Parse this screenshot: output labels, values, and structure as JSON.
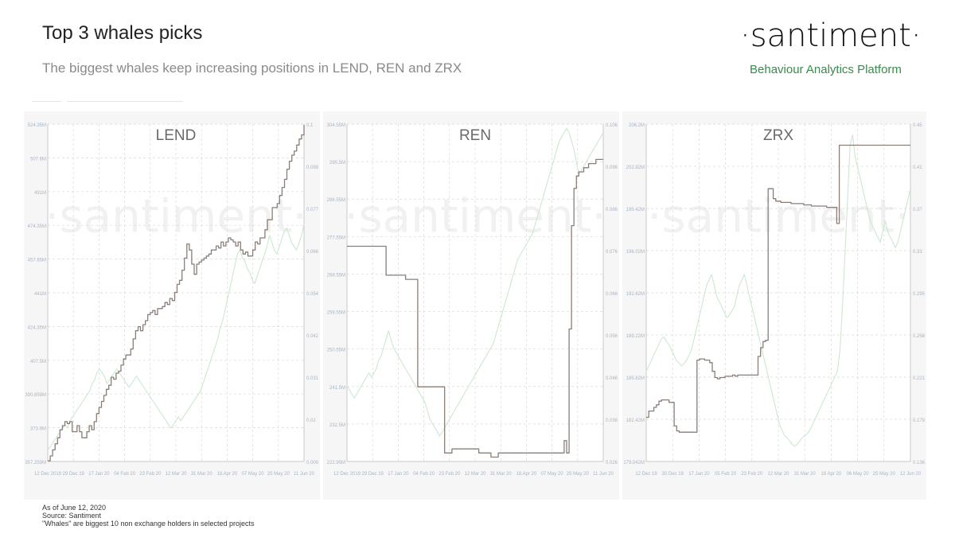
{
  "header": {
    "title": "Top 3 whales picks",
    "subtitle": "The biggest whales keep increasing positions in LEND, REN and ZRX",
    "logo": "·santiment·",
    "tagline": "Behaviour Analytics Platform"
  },
  "footer": {
    "line1": "As of June 12, 2020",
    "line2": "Source: Santiment",
    "line3": "\"Whales\" are biggest 10 non exchange holders in selected projects"
  },
  "watermark": "·santiment·",
  "colors": {
    "holdings": "#8a7e78",
    "price": "#cde8cf",
    "grid": "#d9d9d9",
    "axis_text": "#a8b4c4"
  },
  "chart_data": [
    {
      "type": "line",
      "title": "LEND",
      "x_ticks": [
        "12 Dec 2019",
        "29 Dec 19",
        "17 Jan 20",
        "04 Feb 20",
        "23 Feb 20",
        "12 Mar 20",
        "31 Mar 20",
        "18 Apr 20",
        "07 May 20",
        "25 May 20",
        "11 Jun 20"
      ],
      "left_ticks": [
        "357.259M",
        "373.9M",
        "390.859M",
        "407.5M",
        "424.35M",
        "441M",
        "457.65M",
        "474.35M",
        "491M",
        "507.6M",
        "524.35M"
      ],
      "right_ticks": [
        "0.009",
        "0.02",
        "0.031",
        "0.042",
        "0.054",
        "0.066",
        "0.077",
        "0.088",
        "0.1"
      ],
      "ylim_left": [
        357.259,
        524.35
      ],
      "ylim_right": [
        0.009,
        0.1
      ],
      "series": [
        {
          "values": [
            357.6,
            360,
            363,
            366,
            369,
            373,
            375,
            377,
            376,
            377,
            372,
            372,
            375,
            372,
            369,
            369,
            372,
            375,
            373,
            377,
            381,
            384,
            387,
            390,
            393,
            395,
            399,
            398,
            401,
            402,
            405,
            408,
            410,
            410,
            413,
            418,
            422,
            424,
            422,
            425,
            427,
            430,
            431,
            432,
            430,
            433,
            433,
            434,
            436,
            435,
            438,
            437,
            441,
            445,
            447,
            452,
            458,
            465,
            462,
            455,
            450,
            455,
            456,
            457,
            458,
            459,
            460,
            462,
            462,
            464,
            463,
            466,
            464,
            466,
            468,
            467,
            466,
            464,
            466,
            462,
            460,
            461,
            459,
            459,
            462,
            466,
            465,
            468,
            468,
            472,
            477,
            477,
            483,
            483,
            485,
            489,
            493,
            497,
            502,
            506,
            509,
            511,
            514,
            517,
            519,
            524
          ]
        },
        {
          "values": [
            0.012,
            0.013,
            0.014,
            0.015,
            0.016,
            0.017,
            0.018,
            0.019,
            0.018,
            0.02,
            0.021,
            0.022,
            0.023,
            0.024,
            0.025,
            0.026,
            0.027,
            0.028,
            0.03,
            0.031,
            0.033,
            0.034,
            0.033,
            0.032,
            0.03,
            0.031,
            0.032,
            0.033,
            0.034,
            0.033,
            0.032,
            0.031,
            0.03,
            0.029,
            0.03,
            0.031,
            0.032,
            0.031,
            0.03,
            0.029,
            0.028,
            0.027,
            0.026,
            0.025,
            0.024,
            0.023,
            0.022,
            0.021,
            0.02,
            0.019,
            0.018,
            0.019,
            0.02,
            0.021,
            0.02,
            0.021,
            0.022,
            0.023,
            0.024,
            0.025,
            0.026,
            0.027,
            0.028,
            0.03,
            0.032,
            0.034,
            0.036,
            0.038,
            0.04,
            0.042,
            0.045,
            0.047,
            0.05,
            0.053,
            0.056,
            0.059,
            0.062,
            0.065,
            0.066,
            0.064,
            0.063,
            0.061,
            0.06,
            0.058,
            0.057,
            0.059,
            0.061,
            0.063,
            0.065,
            0.067,
            0.07,
            0.068,
            0.066,
            0.065,
            0.067,
            0.069,
            0.071,
            0.072,
            0.07,
            0.068,
            0.067,
            0.066,
            0.068,
            0.07,
            0.073
          ]
        }
      ]
    },
    {
      "type": "line",
      "title": "REN",
      "x_ticks": [
        "12 Dec 2019",
        "29 Dec 19",
        "17 Jan 20",
        "04 Feb 20",
        "23 Feb 20",
        "12 Mar 20",
        "31 Mar 20",
        "18 Apr 20",
        "07 May 20",
        "25 May 20",
        "11 Jun 20"
      ],
      "left_ticks": [
        "222.95M",
        "232.5M",
        "241.5M",
        "250.55M",
        "259.55M",
        "268.55M",
        "277.55M",
        "286.55M",
        "295.5M",
        "304.55M"
      ],
      "right_ticks": [
        "0.026",
        "0.036",
        "0.046",
        "0.056",
        "0.066",
        "0.076",
        "0.086",
        "0.096",
        "0.106"
      ],
      "ylim_left": [
        222.95,
        304.55
      ],
      "ylim_right": [
        0.026,
        0.106
      ],
      "series": [
        {
          "values": [
            275,
            275,
            275,
            275,
            275,
            275,
            275,
            275,
            275,
            275,
            275,
            275,
            275,
            275,
            275,
            275,
            268,
            268,
            268,
            268,
            268,
            268,
            268,
            268,
            267,
            267,
            267,
            267,
            267,
            241,
            241,
            241,
            241,
            241,
            241,
            241,
            241,
            241,
            241,
            241,
            225,
            225,
            225,
            226,
            226,
            226,
            226,
            226,
            226,
            226,
            226,
            226,
            226,
            226,
            225,
            225,
            225,
            225,
            225,
            224,
            224,
            224,
            225,
            225,
            225,
            225,
            225,
            225,
            225,
            225,
            225,
            225,
            225,
            225,
            225,
            225,
            225,
            225,
            225,
            225,
            225,
            225,
            225,
            225,
            225,
            225,
            225,
            225,
            225,
            228,
            225,
            255,
            280,
            289,
            292,
            293,
            293,
            294,
            294,
            295,
            295,
            295,
            296,
            296,
            296,
            296
          ]
        },
        {
          "values": [
            0.044,
            0.043,
            0.042,
            0.041,
            0.042,
            0.043,
            0.044,
            0.045,
            0.046,
            0.047,
            0.046,
            0.047,
            0.048,
            0.05,
            0.051,
            0.053,
            0.055,
            0.057,
            0.055,
            0.053,
            0.052,
            0.051,
            0.05,
            0.049,
            0.048,
            0.047,
            0.046,
            0.045,
            0.044,
            0.043,
            0.042,
            0.041,
            0.04,
            0.038,
            0.036,
            0.035,
            0.034,
            0.033,
            0.032,
            0.033,
            0.034,
            0.035,
            0.036,
            0.037,
            0.038,
            0.039,
            0.04,
            0.041,
            0.042,
            0.043,
            0.044,
            0.045,
            0.046,
            0.047,
            0.048,
            0.049,
            0.05,
            0.051,
            0.052,
            0.053,
            0.054,
            0.056,
            0.058,
            0.06,
            0.062,
            0.064,
            0.066,
            0.068,
            0.07,
            0.072,
            0.074,
            0.075,
            0.076,
            0.077,
            0.078,
            0.079,
            0.08,
            0.082,
            0.084,
            0.086,
            0.088,
            0.09,
            0.092,
            0.094,
            0.096,
            0.098,
            0.1,
            0.102,
            0.103,
            0.104,
            0.105,
            0.104,
            0.102,
            0.1,
            0.097,
            0.094,
            0.095,
            0.096,
            0.097,
            0.098,
            0.099,
            0.1,
            0.101,
            0.102,
            0.103,
            0.104
          ]
        }
      ]
    },
    {
      "type": "line",
      "title": "ZRX",
      "x_ticks": [
        "12 Dec 19",
        "30 Dec 19",
        "17 Jan 20",
        "05 Feb 20",
        "23 Feb 20",
        "12 Mar 20",
        "31 Mar 20",
        "18 Apr 20",
        "06 May 20",
        "25 May 20",
        "12 Jun 20"
      ],
      "left_ticks": [
        "179.042M",
        "182.42M",
        "185.82M",
        "189.22M",
        "192.62M",
        "196.02M",
        "199.42M",
        "202.82M",
        "206.2M"
      ],
      "right_ticks": [
        "0.136",
        "0.179",
        "0.221",
        "0.258",
        "0.295",
        "0.33",
        "0.37",
        "0.41",
        "0.45"
      ],
      "ylim_left": [
        179.042,
        206.2
      ],
      "ylim_right": [
        0.136,
        0.45
      ],
      "series": [
        {
          "values": [
            182.6,
            183.1,
            183.1,
            183.4,
            183.6,
            183.9,
            184.0,
            184.0,
            184.0,
            183.8,
            183.8,
            181.9,
            181.5,
            181.4,
            181.4,
            181.4,
            181.4,
            181.4,
            181.4,
            181.4,
            187.2,
            187.3,
            187.3,
            187.2,
            187.2,
            187.0,
            186.3,
            185.8,
            185.7,
            185.8,
            185.8,
            185.9,
            185.9,
            185.9,
            186.0,
            185.9,
            186.0,
            186.0,
            186.0,
            186.0,
            186.0,
            186.0,
            186.0,
            186.0,
            187.5,
            188.2,
            188.7,
            188.8,
            201.0,
            201.0,
            200.2,
            200.0,
            200.0,
            199.9,
            199.9,
            199.9,
            199.9,
            199.8,
            199.8,
            199.8,
            199.8,
            199.8,
            199.7,
            199.7,
            199.7,
            199.6,
            199.6,
            199.6,
            199.6,
            199.6,
            199.6,
            199.5,
            199.5,
            199.5,
            199.5,
            198.2,
            204.5,
            204.5,
            204.5,
            204.5,
            204.5,
            204.5,
            204.5,
            204.5,
            204.5,
            204.5,
            204.5,
            204.5,
            204.5,
            204.5,
            204.5,
            204.5,
            204.5,
            204.5,
            204.5,
            204.5,
            204.5,
            204.5,
            204.5,
            204.5,
            204.5,
            204.5,
            204.5,
            204.5,
            204.5
          ]
        },
        {
          "values": [
            0.22,
            0.225,
            0.23,
            0.235,
            0.24,
            0.245,
            0.25,
            0.252,
            0.248,
            0.245,
            0.24,
            0.235,
            0.23,
            0.228,
            0.225,
            0.227,
            0.23,
            0.235,
            0.24,
            0.25,
            0.26,
            0.27,
            0.28,
            0.29,
            0.3,
            0.305,
            0.31,
            0.3,
            0.29,
            0.285,
            0.28,
            0.275,
            0.27,
            0.272,
            0.276,
            0.28,
            0.29,
            0.3,
            0.305,
            0.31,
            0.3,
            0.29,
            0.28,
            0.27,
            0.26,
            0.25,
            0.24,
            0.23,
            0.22,
            0.21,
            0.2,
            0.19,
            0.18,
            0.17,
            0.165,
            0.16,
            0.158,
            0.155,
            0.152,
            0.15,
            0.152,
            0.155,
            0.158,
            0.16,
            0.162,
            0.165,
            0.17,
            0.175,
            0.18,
            0.185,
            0.19,
            0.195,
            0.2,
            0.205,
            0.21,
            0.215,
            0.22,
            0.24,
            0.28,
            0.33,
            0.38,
            0.43,
            0.44,
            0.42,
            0.41,
            0.4,
            0.39,
            0.38,
            0.37,
            0.36,
            0.355,
            0.35,
            0.345,
            0.34,
            0.35,
            0.36,
            0.35,
            0.345,
            0.34,
            0.335,
            0.34,
            0.35,
            0.36,
            0.37,
            0.38,
            0.39
          ]
        }
      ]
    }
  ]
}
